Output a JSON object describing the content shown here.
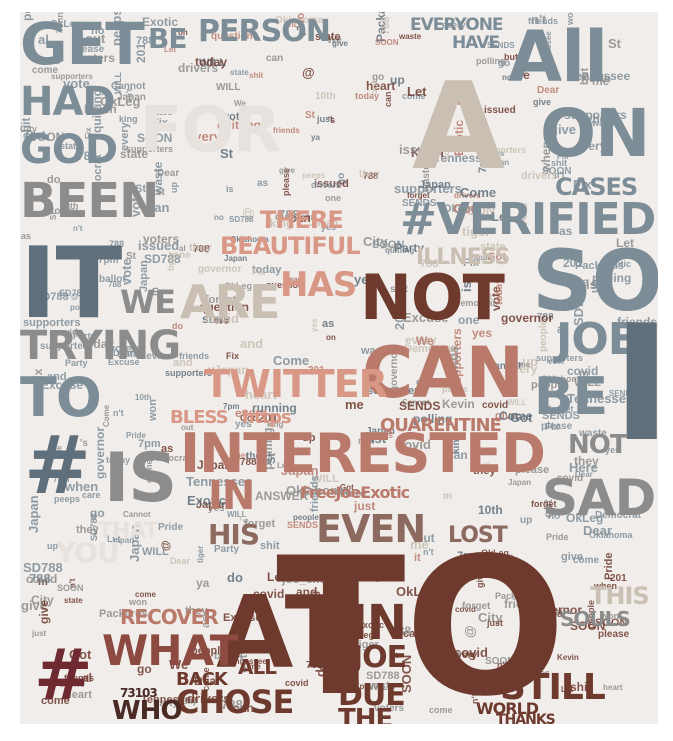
{
  "image": {
    "kind": "word cloud portrait",
    "colors": {
      "slate": "#7d8d98",
      "slate_dark": "#5f6f7b",
      "beige": "#c9bfb2",
      "cream": "#e7e2dd",
      "salmon": "#d99786",
      "rose": "#b97a6c",
      "brown": "#6e3a2e",
      "dark_brown": "#4a2a24",
      "grey": "#8c8c8c"
    }
  },
  "words": {
    "get": "GET",
    "be": "BE",
    "person": "PERSON",
    "everyone": "EVERYONE",
    "have": "HAVE",
    "all": "All",
    "on": "ON",
    "had": "HAD",
    "god": "GOD",
    "for": "FOR",
    "a_big": "A",
    "been": "BEEN",
    "it": "IT",
    "verified": "#VERIFIED",
    "so": "SO",
    "cases": "CASES",
    "there": "THERE",
    "beautiful": "BEAUTIFUL",
    "illness": "ILLNESS",
    "not": "NOT",
    "we": "WE",
    "are": "ARE",
    "has": "HAS",
    "trying": "TRYING",
    "twitter": "TWITTER",
    "can": "CAN",
    "joe": "JOE",
    "i_big": "I",
    "to_small": "TO",
    "bless": "BLESS",
    "https": "https",
    "quarentine": "QUARENTINE",
    "be2": "BE",
    "interested": "INTERESTED",
    "is": "IS",
    "in": "IN",
    "freejoe": "FreeJoeExotic",
    "even": "EVEN",
    "sad": "SAD",
    "his": "HIS",
    "lost": "LOST",
    "that": "THAT",
    "you": "YOU",
    "to_huge": "TO",
    "at": "AT",
    "what": "WHAT",
    "recover": "RECOVER",
    "hash": "#",
    "chose": "CHOSE",
    "who": "WHO",
    "back": "BACK",
    "all2": "ALL",
    "due": "DUE",
    "the": "THE",
    "still": "STILL",
    "souls": "SOULS",
    "this": "THIS",
    "thanks": "THANKS",
    "world": "WORLD",
    "number": "73103",
    "verified2": "verified",
    "small_words": [
      "yes",
      "vote",
      "can",
      "come",
      "and",
      "Here",
      "Fix",
      "state",
      "SOON",
      "WILL",
      "covid",
      "Japan",
      "supporters",
      "788",
      "give",
      "people",
      "forget",
      "Come",
      "ANSWER",
      "tiger",
      "king",
      "voters",
      "City",
      "Oklahoma",
      "governor",
      "Exotic",
      "peeps",
      "ballot",
      "care",
      "Pride",
      "polling",
      "one",
      "but",
      "out",
      "joe_exotic",
      "Democrat",
      "running",
      "heart",
      "please",
      "Dear",
      "Got",
      "today",
      "waste",
      "Let",
      "friends",
      "they",
      "quitting",
      "ya",
      "won",
      "Excuse",
      "10th",
      "shit",
      "do",
      "@",
      "Kevin",
      "Party",
      "when",
      "every",
      "Packards",
      "just",
      "SENDS",
      "question",
      "drivers",
      "Cannot",
      "SD788",
      "issued",
      "Tennessee",
      "OkLeg",
      "7pm",
      "201",
      "St",
      "up",
      "al",
      "no",
      "it",
      "is",
      "on",
      "go",
      "me",
      "if",
      "as",
      "We",
      "n't",
      "'s",
      "m"
    ]
  }
}
